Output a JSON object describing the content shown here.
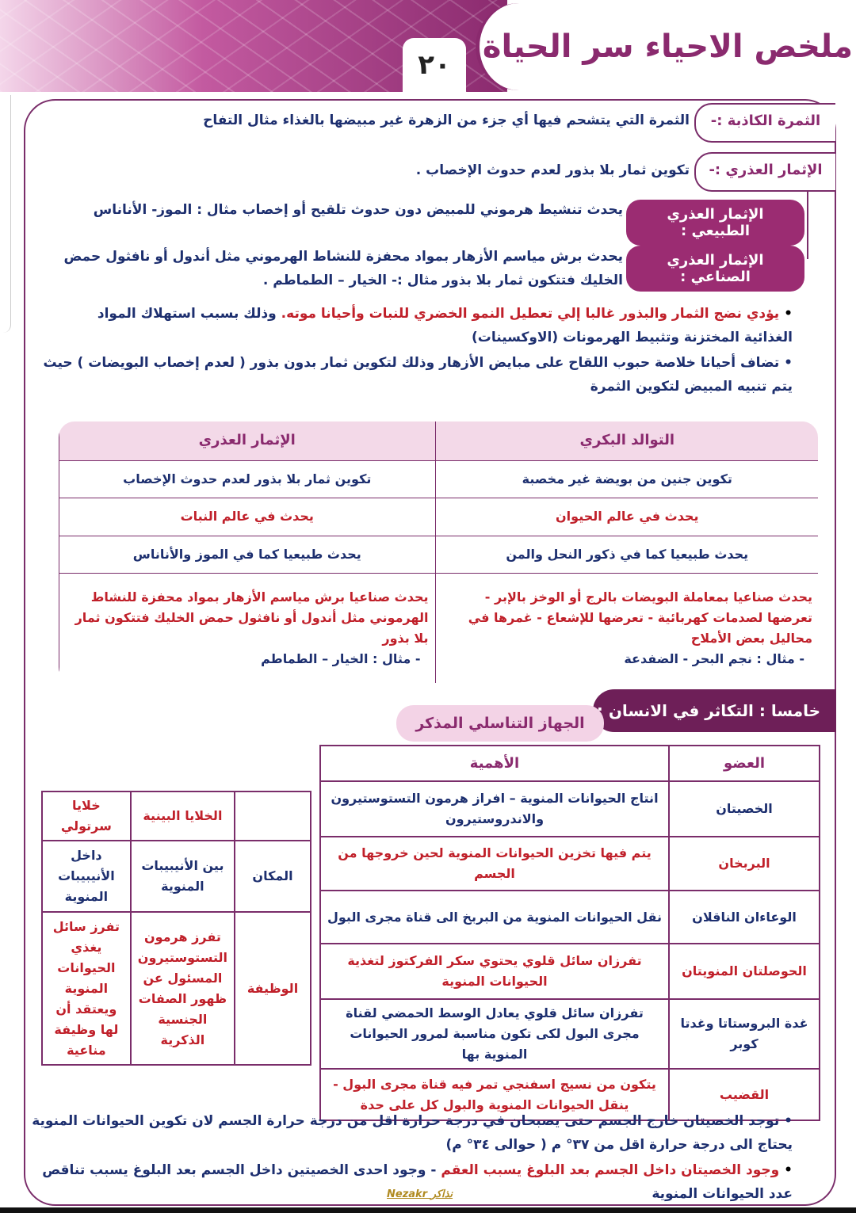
{
  "header": {
    "title": "ملخص الاحياء سر الحياة",
    "page_number": "٢٠"
  },
  "definitions": [
    {
      "term": "الثمرة الكاذبة :-",
      "text": "الثمرة التي يتشحم فيها أي جزء من الزهرة غير مبيضها بالغذاء مثال التفاح"
    },
    {
      "term": "الإثمار العذري :-",
      "text": "تكوين ثمار بلا بذور لعدم حدوث الإخصاب ."
    },
    {
      "term": "الإثمار العذري الطبيعي :",
      "text": "يحدث تنشيط هرموني للمبيض دون حدوث تلقيح أو إخصاب مثال : الموز- الأناناس"
    },
    {
      "term": "الإثمار العذري الصناعي :",
      "text": "يحدث برش مياسم الأزهار بمواد محفزة للنشاط الهرموني مثل أندول أو نافثول حمض الخليك فتتكون ثمار بلا بذور مثال :- الخيار – الطماطم ."
    }
  ],
  "notes1": [
    {
      "red": "يؤدي نضج الثمار والبذور غالبا إلي تعطيل النمو الخضري للنبات وأحيانا موته.",
      "blue": " وذلك بسبب استهلاك المواد الغذائية المختزنة وتثبيط الهرمونات (الاوكسينات)"
    },
    {
      "red": "",
      "blue": "تضاف أحيانا خلاصة حبوب اللقاح على مبايض الأزهار وذلك لتكوين ثمار بدون بذور ( لعدم إخصاب البويضات ) حيث يتم تنبيه المبيض لتكوين الثمرة"
    }
  ],
  "compare_table": {
    "headers": [
      "التوالد البكري",
      "الإثمار العذري"
    ],
    "rows": [
      [
        "تكوين جنين من بويضة غير مخصبة",
        "تكوين ثمار بلا بذور لعدم حدوث الإخصاب"
      ],
      [
        "يحدث في عالم الحيوان",
        "يحدث في عالم النبات"
      ],
      [
        "يحدث طبيعيا كما في ذكور النحل والمن",
        "يحدث طبيعيا كما في الموز والأناناس"
      ]
    ],
    "last_row": [
      {
        "text": "يحدث صناعيا بمعاملة البويضات بالرج أو الوخز بالإبر - تعرضها لصدمات كهربائية - تعرضها للإشعاع - غمرها في محاليل بعض الأملاح",
        "example": "- مثال : نجم البحر - الضفدعة"
      },
      {
        "text": "يحدث صناعيا برش مياسم الأزهار بمواد محفزة للنشاط الهرموني مثل أندول أو نافثول حمض الخليك فتتكون ثمار بلا بذور",
        "example": "- مثال : الخيار – الطماطم"
      }
    ]
  },
  "section": {
    "heading": "خامسا : التكاثر في الانسان :",
    "subheading": "الجهاز التناسلي المذكر"
  },
  "organs_table": {
    "headers": [
      "العضو",
      "الأهمية"
    ],
    "rows": [
      {
        "organ": "الخصيتان",
        "role": "انتاج الحيوانات المنوية – افراز هرمون التستوستيرون والاندروستيرون",
        "color": "blue"
      },
      {
        "organ": "البربخان",
        "role": "يتم فيها تخزين الحيوانات المنوية لحين خروجها من الجسم",
        "color": "red"
      },
      {
        "organ": "الوعاءان الناقلان",
        "role": "نقل الحيوانات المنوية من البربخ الى قناة مجرى البول",
        "color": "blue"
      },
      {
        "organ": "الحوصلتان المنويتان",
        "role": "تفرزان سائل قلوي يحتوي سكر الفركتوز لتغذية الحيوانات المنوية",
        "color": "red"
      },
      {
        "organ": "غدة البروستاتا وغدتا كوبر",
        "role": "تفرزان سائل قلوي يعادل الوسط الحمضي لقناة مجرى البول لكى تكون مناسبة لمرور الحيوانات المنوية بها",
        "color": "blue"
      },
      {
        "organ": "القضيب",
        "role": "يتكون من نسيج اسفنجي تمر فيه قناة مجرى البول - ينقل الحيوانات المنوية والبول كل على حدة",
        "color": "red"
      }
    ]
  },
  "cells_table": {
    "headers": [
      "",
      "الخلايا البينية",
      "خلايا سرتولي"
    ],
    "rows": [
      [
        "المكان",
        "بين الأنيبيبات المنوية",
        "داخل الأنيبيبات المنوية"
      ],
      [
        "الوظيفة",
        "تفرز هرمون التستوستيرون المسئول عن ظهور الصفات الجنسية الذكرية",
        "تفرز سائل يغذي الحيوانات المنوية ويعتقد أن لها وظيفة مناعية"
      ]
    ]
  },
  "notes2": [
    {
      "red": "",
      "blue": "توجد الخصيتان خارج الجسم حتى يصبحان في درجة حرارة اقل من درجة حرارة الجسم لان تكوين الحيوانات المنوية يحتاج الى درجة حرارة اقل من ٣٧° م ( حوالى ٣٤° م)"
    },
    {
      "red": "وجود الخصيتان داخل الجسم بعد البلوغ يسبب العقم",
      "blue": " - وجود احدى الخصيتين داخل الجسم بعد البلوغ يسبب تناقص عدد الحيوانات المنوية"
    }
  ],
  "watermark": "Nezakr نذاكر",
  "colors": {
    "purple": "#8a2a6e",
    "blue": "#1d2f6f",
    "red": "#c0202a"
  }
}
